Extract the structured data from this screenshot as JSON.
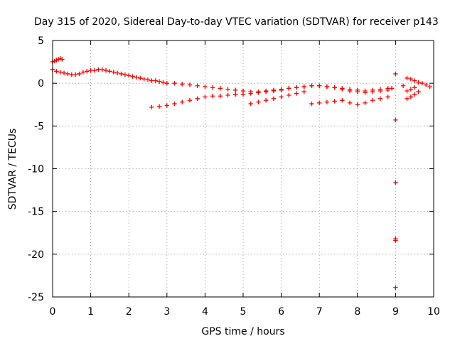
{
  "chart_data": {
    "type": "scatter",
    "title": "Day 315 of 2020, Sidereal Day-to-day VTEC variation (SDTVAR) for receiver p143",
    "xlabel": "GPS time / hours",
    "ylabel": "SDTVAR / TECUs",
    "xlim": [
      0,
      10
    ],
    "ylim": [
      -25,
      5
    ],
    "x_ticks": [
      0,
      1,
      2,
      3,
      4,
      5,
      6,
      7,
      8,
      9,
      10
    ],
    "y_ticks": [
      5,
      0,
      -5,
      -10,
      -15,
      -20,
      -25
    ],
    "grid": true,
    "marker": "plus",
    "series": [
      {
        "name": "main-band",
        "color": "#ff0000",
        "x": [
          0.0,
          0.1,
          0.2,
          0.3,
          0.4,
          0.5,
          0.6,
          0.7,
          0.8,
          0.9,
          1.0,
          1.1,
          1.2,
          1.3,
          1.4,
          1.5,
          1.6,
          1.7,
          1.8,
          1.9,
          2.0,
          2.1,
          2.2,
          2.3,
          2.4,
          2.5,
          2.6,
          2.7,
          2.8,
          2.9,
          3.0,
          3.2,
          3.4,
          3.6,
          3.8,
          4.0,
          4.2,
          4.4,
          4.6,
          4.8,
          5.0,
          5.2,
          5.4,
          5.6,
          5.8,
          6.0,
          6.2,
          6.4,
          6.6,
          6.8,
          7.0,
          7.2,
          7.4,
          7.6,
          7.8,
          8.0,
          8.2,
          8.4,
          8.6,
          8.8,
          8.9
        ],
        "y": [
          1.6,
          1.4,
          1.3,
          1.2,
          1.1,
          1.0,
          1.0,
          1.1,
          1.3,
          1.4,
          1.5,
          1.5,
          1.6,
          1.6,
          1.5,
          1.4,
          1.3,
          1.2,
          1.1,
          1.0,
          0.9,
          0.8,
          0.7,
          0.6,
          0.5,
          0.4,
          0.3,
          0.3,
          0.2,
          0.1,
          0.0,
          0.0,
          -0.1,
          -0.2,
          -0.3,
          -0.4,
          -0.5,
          -0.6,
          -0.7,
          -0.8,
          -0.9,
          -1.0,
          -1.0,
          -0.9,
          -0.8,
          -0.7,
          -0.6,
          -0.5,
          -0.4,
          -0.3,
          -0.3,
          -0.4,
          -0.5,
          -0.6,
          -0.7,
          -0.8,
          -0.9,
          -0.8,
          -0.7,
          -0.6,
          -0.6
        ]
      },
      {
        "name": "lower-band",
        "color": "#ff0000",
        "x": [
          2.6,
          2.8,
          3.0,
          3.2,
          3.4,
          3.6,
          3.8,
          4.0,
          4.2,
          4.4,
          4.6,
          4.8,
          5.0,
          5.2,
          5.4,
          5.6,
          5.8,
          6.0,
          6.2,
          6.4,
          6.6,
          6.8,
          7.0,
          7.2,
          7.4,
          7.6,
          7.8,
          8.0,
          8.2,
          8.4,
          8.6,
          8.8
        ],
        "y": [
          -2.8,
          -2.7,
          -2.6,
          -2.4,
          -2.2,
          -2.0,
          -1.8,
          -1.6,
          -1.5,
          -1.5,
          -1.4,
          -1.3,
          -1.3,
          -1.2,
          -1.1,
          -1.0,
          -0.9,
          -0.8,
          -0.6,
          -0.5,
          -0.4,
          -0.3,
          -0.3,
          -0.4,
          -0.5,
          -0.7,
          -0.9,
          -1.0,
          -1.1,
          -1.0,
          -0.9,
          -0.8
        ]
      },
      {
        "name": "secondary-band",
        "color": "#ff0000",
        "x": [
          5.2,
          5.4,
          5.6,
          5.8,
          6.0,
          6.2,
          6.4,
          6.6,
          6.8,
          7.0,
          7.2,
          7.4,
          7.6,
          7.8,
          8.0,
          8.2,
          8.4,
          8.6,
          8.8
        ],
        "y": [
          -2.4,
          -2.2,
          -2.0,
          -1.8,
          -1.6,
          -1.4,
          -1.2,
          -1.0,
          -2.4,
          -2.3,
          -2.2,
          -2.1,
          -2.0,
          -2.3,
          -2.5,
          -2.3,
          -2.0,
          -1.8,
          -1.6
        ]
      },
      {
        "name": "early-segment",
        "color": "#ff0000",
        "x": [
          0.0,
          0.05,
          0.1,
          0.15,
          0.2,
          0.25
        ],
        "y": [
          2.5,
          2.6,
          2.7,
          2.8,
          2.9,
          2.8
        ]
      },
      {
        "name": "late-segment",
        "color": "#ff0000",
        "x": [
          9.2,
          9.3,
          9.4,
          9.5,
          9.6,
          9.7,
          9.8,
          9.9,
          9.3,
          9.4,
          9.5,
          9.6,
          9.3,
          9.4,
          9.5
        ],
        "y": [
          -0.3,
          0.6,
          0.5,
          0.3,
          0.1,
          0.0,
          -0.2,
          -0.4,
          -1.8,
          -1.6,
          -1.3,
          -1.0,
          -0.9,
          -0.7,
          -0.5
        ]
      },
      {
        "name": "outliers",
        "color": "#ff0000",
        "x": [
          9.0,
          9.0,
          9.0,
          9.0,
          9.0,
          9.0
        ],
        "y": [
          1.1,
          -4.3,
          -11.6,
          -18.2,
          -18.4,
          -23.9
        ]
      }
    ]
  }
}
